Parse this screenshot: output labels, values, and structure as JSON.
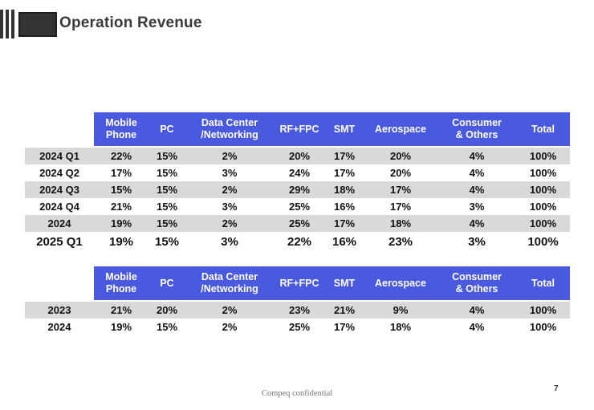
{
  "slide": {
    "title": "Operation Revenue",
    "footer": "Compeq confidential",
    "page_number": "7"
  },
  "colors": {
    "header_bg": "#4a5ae0",
    "header_text": "#ffffff",
    "row_shaded": "#d9d9d9",
    "cell_text": "#111111",
    "title": "#3a3a3a",
    "logo": "#333333",
    "footer": "#777777",
    "page": "#333333"
  },
  "logo": {
    "name": "compeq-logo-mark"
  },
  "table_quarterly": {
    "columns": [
      "",
      "Mobile\nPhone",
      "PC",
      "Data Center\n/Networking",
      "RF+FPC",
      "SMT",
      "Aerospace",
      "Consumer\n& Others",
      "Total"
    ],
    "rows": [
      {
        "label": "2024 Q1",
        "values": [
          "22%",
          "15%",
          "2%",
          "20%",
          "17%",
          "20%",
          "4%",
          "100%"
        ],
        "shaded": true,
        "emphasis": false
      },
      {
        "label": "2024 Q2",
        "values": [
          "17%",
          "15%",
          "3%",
          "24%",
          "17%",
          "20%",
          "4%",
          "100%"
        ],
        "shaded": false,
        "emphasis": false
      },
      {
        "label": "2024 Q3",
        "values": [
          "15%",
          "15%",
          "2%",
          "29%",
          "18%",
          "17%",
          "4%",
          "100%"
        ],
        "shaded": true,
        "emphasis": false
      },
      {
        "label": "2024 Q4",
        "values": [
          "21%",
          "15%",
          "3%",
          "25%",
          "16%",
          "17%",
          "3%",
          "100%"
        ],
        "shaded": false,
        "emphasis": false
      },
      {
        "label": "2024",
        "values": [
          "19%",
          "15%",
          "2%",
          "25%",
          "17%",
          "18%",
          "4%",
          "100%"
        ],
        "shaded": true,
        "emphasis": false
      },
      {
        "label": "2025 Q1",
        "values": [
          "19%",
          "15%",
          "3%",
          "22%",
          "16%",
          "23%",
          "3%",
          "100%"
        ],
        "shaded": false,
        "emphasis": true
      }
    ]
  },
  "table_annual": {
    "columns": [
      "",
      "Mobile\nPhone",
      "PC",
      "Data Center\n/Networking",
      "RF+FPC",
      "SMT",
      "Aerospace",
      "Consumer\n& Others",
      "Total"
    ],
    "rows": [
      {
        "label": "2023",
        "values": [
          "21%",
          "20%",
          "2%",
          "23%",
          "21%",
          "9%",
          "4%",
          "100%"
        ],
        "shaded": true,
        "emphasis": false
      },
      {
        "label": "2024",
        "values": [
          "19%",
          "15%",
          "2%",
          "25%",
          "17%",
          "18%",
          "4%",
          "100%"
        ],
        "shaded": false,
        "emphasis": false
      }
    ]
  }
}
